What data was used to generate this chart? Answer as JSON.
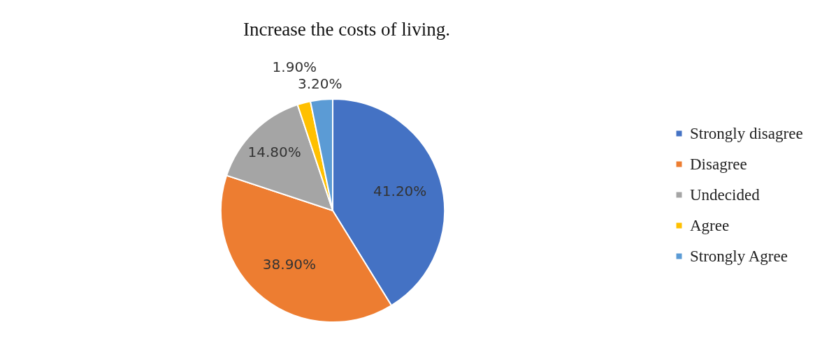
{
  "chart_data": {
    "type": "pie",
    "title": "Increase the costs of living.",
    "categories": [
      "Strongly disagree",
      "Disagree",
      "Undecided",
      "Agree",
      "Strongly Agree"
    ],
    "values": [
      41.2,
      38.9,
      14.8,
      1.9,
      3.2
    ],
    "value_labels": [
      "41.20%",
      "38.90%",
      "14.80%",
      "1.90%",
      "3.20%"
    ],
    "colors": [
      "#4472c4",
      "#ed7d31",
      "#a5a5a5",
      "#ffc000",
      "#5b9bd5"
    ],
    "legend": "right"
  }
}
